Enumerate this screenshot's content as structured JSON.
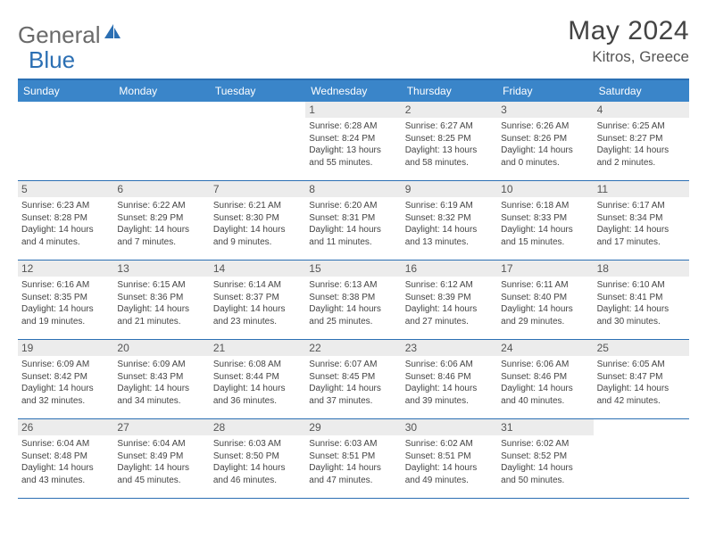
{
  "brand": {
    "part1": "General",
    "part2": "Blue"
  },
  "title": "May 2024",
  "location": "Kitros, Greece",
  "colors": {
    "header_bar": "#3a85c9",
    "border": "#2b6fb3",
    "daynum_bg": "#ececec",
    "text": "#444444",
    "logo_gray": "#6a6a6a",
    "logo_blue": "#2b6fb3"
  },
  "weekdays": [
    "Sunday",
    "Monday",
    "Tuesday",
    "Wednesday",
    "Thursday",
    "Friday",
    "Saturday"
  ],
  "weeks": [
    [
      {
        "n": "",
        "lines": []
      },
      {
        "n": "",
        "lines": []
      },
      {
        "n": "",
        "lines": []
      },
      {
        "n": "1",
        "lines": [
          "Sunrise: 6:28 AM",
          "Sunset: 8:24 PM",
          "Daylight: 13 hours and 55 minutes."
        ]
      },
      {
        "n": "2",
        "lines": [
          "Sunrise: 6:27 AM",
          "Sunset: 8:25 PM",
          "Daylight: 13 hours and 58 minutes."
        ]
      },
      {
        "n": "3",
        "lines": [
          "Sunrise: 6:26 AM",
          "Sunset: 8:26 PM",
          "Daylight: 14 hours and 0 minutes."
        ]
      },
      {
        "n": "4",
        "lines": [
          "Sunrise: 6:25 AM",
          "Sunset: 8:27 PM",
          "Daylight: 14 hours and 2 minutes."
        ]
      }
    ],
    [
      {
        "n": "5",
        "lines": [
          "Sunrise: 6:23 AM",
          "Sunset: 8:28 PM",
          "Daylight: 14 hours and 4 minutes."
        ]
      },
      {
        "n": "6",
        "lines": [
          "Sunrise: 6:22 AM",
          "Sunset: 8:29 PM",
          "Daylight: 14 hours and 7 minutes."
        ]
      },
      {
        "n": "7",
        "lines": [
          "Sunrise: 6:21 AM",
          "Sunset: 8:30 PM",
          "Daylight: 14 hours and 9 minutes."
        ]
      },
      {
        "n": "8",
        "lines": [
          "Sunrise: 6:20 AM",
          "Sunset: 8:31 PM",
          "Daylight: 14 hours and 11 minutes."
        ]
      },
      {
        "n": "9",
        "lines": [
          "Sunrise: 6:19 AM",
          "Sunset: 8:32 PM",
          "Daylight: 14 hours and 13 minutes."
        ]
      },
      {
        "n": "10",
        "lines": [
          "Sunrise: 6:18 AM",
          "Sunset: 8:33 PM",
          "Daylight: 14 hours and 15 minutes."
        ]
      },
      {
        "n": "11",
        "lines": [
          "Sunrise: 6:17 AM",
          "Sunset: 8:34 PM",
          "Daylight: 14 hours and 17 minutes."
        ]
      }
    ],
    [
      {
        "n": "12",
        "lines": [
          "Sunrise: 6:16 AM",
          "Sunset: 8:35 PM",
          "Daylight: 14 hours and 19 minutes."
        ]
      },
      {
        "n": "13",
        "lines": [
          "Sunrise: 6:15 AM",
          "Sunset: 8:36 PM",
          "Daylight: 14 hours and 21 minutes."
        ]
      },
      {
        "n": "14",
        "lines": [
          "Sunrise: 6:14 AM",
          "Sunset: 8:37 PM",
          "Daylight: 14 hours and 23 minutes."
        ]
      },
      {
        "n": "15",
        "lines": [
          "Sunrise: 6:13 AM",
          "Sunset: 8:38 PM",
          "Daylight: 14 hours and 25 minutes."
        ]
      },
      {
        "n": "16",
        "lines": [
          "Sunrise: 6:12 AM",
          "Sunset: 8:39 PM",
          "Daylight: 14 hours and 27 minutes."
        ]
      },
      {
        "n": "17",
        "lines": [
          "Sunrise: 6:11 AM",
          "Sunset: 8:40 PM",
          "Daylight: 14 hours and 29 minutes."
        ]
      },
      {
        "n": "18",
        "lines": [
          "Sunrise: 6:10 AM",
          "Sunset: 8:41 PM",
          "Daylight: 14 hours and 30 minutes."
        ]
      }
    ],
    [
      {
        "n": "19",
        "lines": [
          "Sunrise: 6:09 AM",
          "Sunset: 8:42 PM",
          "Daylight: 14 hours and 32 minutes."
        ]
      },
      {
        "n": "20",
        "lines": [
          "Sunrise: 6:09 AM",
          "Sunset: 8:43 PM",
          "Daylight: 14 hours and 34 minutes."
        ]
      },
      {
        "n": "21",
        "lines": [
          "Sunrise: 6:08 AM",
          "Sunset: 8:44 PM",
          "Daylight: 14 hours and 36 minutes."
        ]
      },
      {
        "n": "22",
        "lines": [
          "Sunrise: 6:07 AM",
          "Sunset: 8:45 PM",
          "Daylight: 14 hours and 37 minutes."
        ]
      },
      {
        "n": "23",
        "lines": [
          "Sunrise: 6:06 AM",
          "Sunset: 8:46 PM",
          "Daylight: 14 hours and 39 minutes."
        ]
      },
      {
        "n": "24",
        "lines": [
          "Sunrise: 6:06 AM",
          "Sunset: 8:46 PM",
          "Daylight: 14 hours and 40 minutes."
        ]
      },
      {
        "n": "25",
        "lines": [
          "Sunrise: 6:05 AM",
          "Sunset: 8:47 PM",
          "Daylight: 14 hours and 42 minutes."
        ]
      }
    ],
    [
      {
        "n": "26",
        "lines": [
          "Sunrise: 6:04 AM",
          "Sunset: 8:48 PM",
          "Daylight: 14 hours and 43 minutes."
        ]
      },
      {
        "n": "27",
        "lines": [
          "Sunrise: 6:04 AM",
          "Sunset: 8:49 PM",
          "Daylight: 14 hours and 45 minutes."
        ]
      },
      {
        "n": "28",
        "lines": [
          "Sunrise: 6:03 AM",
          "Sunset: 8:50 PM",
          "Daylight: 14 hours and 46 minutes."
        ]
      },
      {
        "n": "29",
        "lines": [
          "Sunrise: 6:03 AM",
          "Sunset: 8:51 PM",
          "Daylight: 14 hours and 47 minutes."
        ]
      },
      {
        "n": "30",
        "lines": [
          "Sunrise: 6:02 AM",
          "Sunset: 8:51 PM",
          "Daylight: 14 hours and 49 minutes."
        ]
      },
      {
        "n": "31",
        "lines": [
          "Sunrise: 6:02 AM",
          "Sunset: 8:52 PM",
          "Daylight: 14 hours and 50 minutes."
        ]
      },
      {
        "n": "",
        "lines": []
      }
    ]
  ]
}
